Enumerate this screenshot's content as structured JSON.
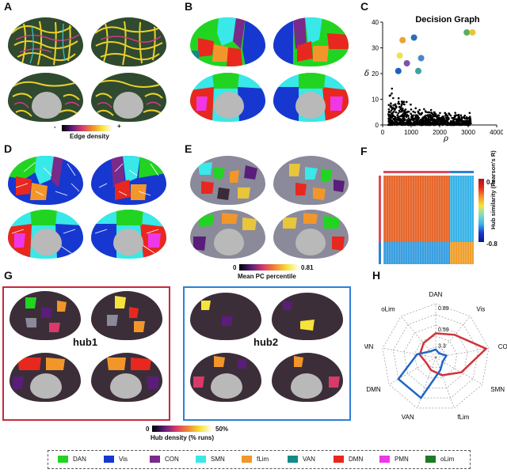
{
  "panels": {
    "A": "A",
    "B": "B",
    "C": "C",
    "D": "D",
    "E": "E",
    "F": "F",
    "G": "G",
    "H": "H"
  },
  "panelA": {
    "colorbar_label": "Edge density",
    "colorbar_min": "-",
    "colorbar_max": "+"
  },
  "panelE": {
    "colorbar_label": "Mean PC percentile",
    "colorbar_min": "0",
    "colorbar_max": "0.81"
  },
  "panelF": {
    "colorbar_label": "Hub similarity (Pearson's R)",
    "colorbar_max": "0.8",
    "colorbar_min": "-0.8"
  },
  "panelG": {
    "hub1_label": "hub1",
    "hub2_label": "hub2",
    "colorbar_label": "Hub density (% runs)",
    "colorbar_min": "0",
    "colorbar_max": "50%",
    "hub1_border": "#c8283c",
    "hub2_border": "#2f7fd6"
  },
  "chart_data": [
    {
      "type": "scatter",
      "title": "Decision Graph",
      "xlabel": "ρ",
      "ylabel": "δ",
      "xlim": [
        0,
        4000
      ],
      "ylim": [
        0,
        40
      ],
      "xticks": [
        "0",
        "1000",
        "2000",
        "3000",
        "4000"
      ],
      "yticks": [
        "0",
        "10",
        "20",
        "30",
        "40"
      ],
      "series": [
        {
          "values": [
            {
              "x": 700,
              "y": 33,
              "color": "#e8a33b"
            },
            {
              "x": 1100,
              "y": 34,
              "color": "#2c6fb7"
            },
            {
              "x": 2950,
              "y": 36,
              "color": "#5aae61"
            },
            {
              "x": 3150,
              "y": 36,
              "color": "#e8c53b"
            },
            {
              "x": 600,
              "y": 27,
              "color": "#f2e14c"
            },
            {
              "x": 1350,
              "y": 26,
              "color": "#4a86c8"
            },
            {
              "x": 850,
              "y": 24,
              "color": "#7b52a8"
            },
            {
              "x": 550,
              "y": 21,
              "color": "#1f5fbf"
            },
            {
              "x": 1250,
              "y": 21,
              "color": "#3aa3a0"
            }
          ]
        }
      ]
    },
    {
      "type": "radar",
      "axes": [
        "DAN",
        "Vis",
        "CON",
        "SMN",
        "fLim",
        "VAN",
        "DMN",
        "PMN",
        "oLim"
      ],
      "rings": [
        "0.89",
        "0.59",
        "3.3"
      ],
      "series": [
        {
          "color": "#d0343a",
          "values": [
            0.45,
            0.55,
            0.95,
            0.55,
            0.35,
            0.25,
            0.2,
            0.3,
            0.35
          ]
        },
        {
          "color": "#1f66c8",
          "values": [
            0.15,
            0.1,
            0.2,
            0.15,
            0.25,
            0.8,
            0.8,
            0.35,
            0.15
          ]
        }
      ]
    }
  ],
  "legend": [
    {
      "label": "DAN",
      "color": "#22d422"
    },
    {
      "label": "Vis",
      "color": "#1738d0"
    },
    {
      "label": "CON",
      "color": "#7a2a8a"
    },
    {
      "label": "SMN",
      "color": "#39e8e8"
    },
    {
      "label": "fLim",
      "color": "#f3962a"
    },
    {
      "label": "VAN",
      "color": "#138b86"
    },
    {
      "label": "DMN",
      "color": "#e8281e"
    },
    {
      "label": "PMN",
      "color": "#ee37e6"
    },
    {
      "label": "oLim",
      "color": "#1d7a27"
    }
  ]
}
